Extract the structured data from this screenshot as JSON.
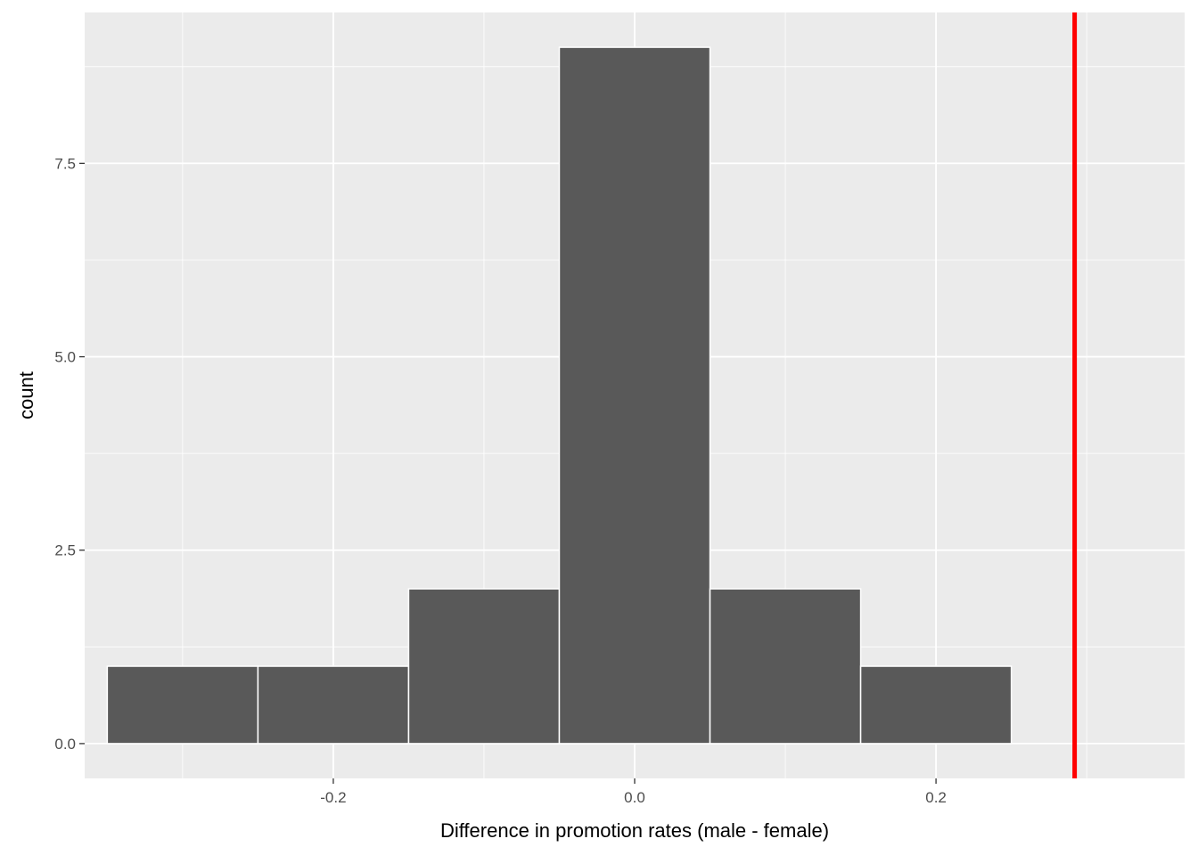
{
  "chart_data": {
    "type": "bar",
    "subtype": "histogram",
    "title": "",
    "xlabel": "Difference in promotion rates (male - female)",
    "ylabel": "count",
    "xlim": [
      -0.365,
      0.365
    ],
    "ylim": [
      -0.45,
      9.45
    ],
    "x_ticks": [
      {
        "value": -0.2,
        "label": "-0.2"
      },
      {
        "value": 0.0,
        "label": "0.0"
      },
      {
        "value": 0.2,
        "label": "0.2"
      }
    ],
    "y_ticks": [
      {
        "value": 0.0,
        "label": "0.0"
      },
      {
        "value": 2.5,
        "label": "2.5"
      },
      {
        "value": 5.0,
        "label": "5.0"
      },
      {
        "value": 7.5,
        "label": "7.5"
      }
    ],
    "bins": [
      {
        "x_start": -0.35,
        "x_end": -0.25,
        "count": 1
      },
      {
        "x_start": -0.25,
        "x_end": -0.15,
        "count": 1
      },
      {
        "x_start": -0.15,
        "x_end": -0.05,
        "count": 2
      },
      {
        "x_start": -0.05,
        "x_end": 0.05,
        "count": 9
      },
      {
        "x_start": 0.05,
        "x_end": 0.15,
        "count": 2
      },
      {
        "x_start": 0.15,
        "x_end": 0.25,
        "count": 1
      }
    ],
    "reference_line": {
      "x": 0.292,
      "color": "#ff0000"
    },
    "grid": true,
    "colors": {
      "panel_background": "#ebebeb",
      "grid": "#ffffff",
      "bar_fill": "#595959",
      "bar_outline": "#ffffff"
    }
  }
}
